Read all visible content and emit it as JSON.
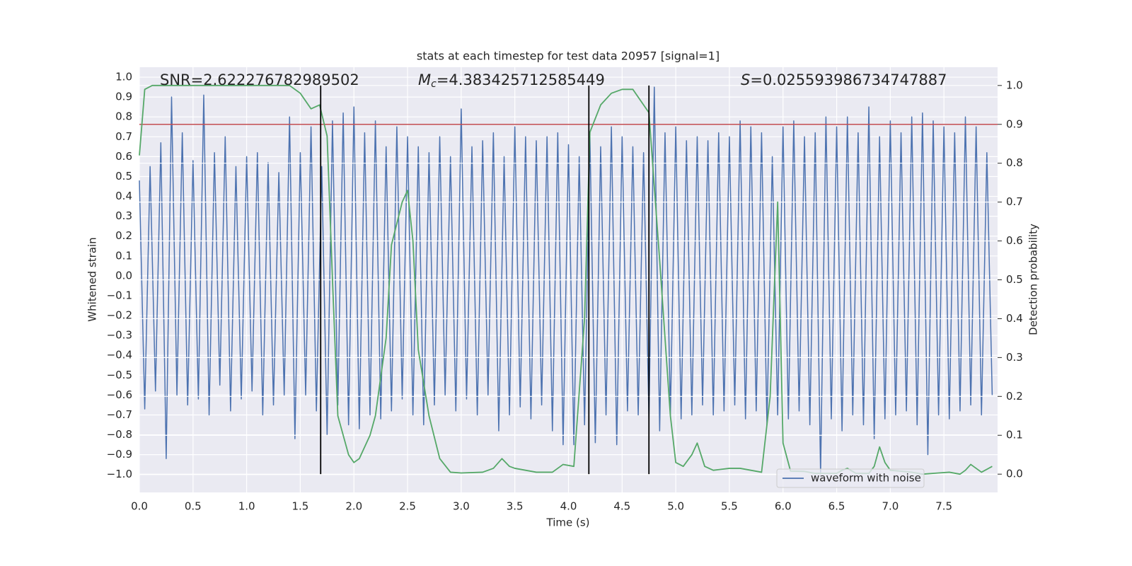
{
  "chart_data": {
    "type": "line",
    "title": "stats at each timestep for test data 20957 [signal=1]",
    "xlabel": "Time (s)",
    "ylabel": "Whitened strain",
    "y2label": "Detection probability",
    "annotations": [
      {
        "text": "SNR=2.622276782989502"
      },
      {
        "symbol": "M",
        "subscript": "c",
        "text": "=4.383425712585449"
      },
      {
        "symbol": "S",
        "text": "=0.025593986734747887"
      }
    ],
    "xlim": [
      0,
      8.0
    ],
    "ylim": [
      -1.09,
      1.05
    ],
    "y2lim": [
      -0.047,
      1.047
    ],
    "xticks": [
      {
        "value": 0,
        "label": "0.0"
      },
      0.5,
      {
        "value": 1,
        "label": "1.0"
      },
      1.5,
      {
        "value": 2,
        "label": "2.0"
      },
      2.5,
      {
        "value": 3,
        "label": "3.0"
      },
      3.5,
      {
        "value": 4,
        "label": "4.0"
      },
      4.5,
      {
        "value": 5,
        "label": "5.0"
      },
      5.5,
      {
        "value": 6,
        "label": "6.0"
      },
      6.5,
      {
        "value": 7,
        "label": "7.0"
      },
      7.5
    ],
    "yticks": [
      {
        "value": -1,
        "label": "−1.0"
      },
      {
        "value": -0.9,
        "label": "−0.9"
      },
      {
        "value": -0.8,
        "label": "−0.8"
      },
      {
        "value": -0.7,
        "label": "−0.7"
      },
      {
        "value": -0.6,
        "label": "−0.6"
      },
      {
        "value": -0.5,
        "label": "−0.5"
      },
      {
        "value": -0.4,
        "label": "−0.4"
      },
      {
        "value": -0.3,
        "label": "−0.3"
      },
      {
        "value": -0.2,
        "label": "−0.2"
      },
      {
        "value": -0.1,
        "label": "−0.1"
      },
      {
        "value": 0,
        "label": "0.0"
      },
      0.1,
      0.2,
      0.3,
      0.4,
      0.5,
      0.6,
      0.7,
      0.8,
      0.9,
      {
        "value": 1,
        "label": "1.0"
      }
    ],
    "y2ticks": [
      {
        "value": 0,
        "label": "0.0"
      },
      0.1,
      0.2,
      0.3,
      0.4,
      0.5,
      0.6,
      0.7,
      0.8,
      0.9,
      {
        "value": 1,
        "label": "1.0"
      }
    ],
    "grid": true,
    "legend": "lower right",
    "series": [
      {
        "name": "waveform with noise",
        "color": "#4c72b0",
        "x": [
          0,
          0.05,
          0.1,
          0.15,
          0.2,
          0.25,
          0.3,
          0.35,
          0.4,
          0.45,
          0.5,
          0.55,
          0.6,
          0.65,
          0.7,
          0.75,
          0.8,
          0.85,
          0.9,
          0.95,
          1,
          1.05,
          1.1,
          1.15,
          1.2,
          1.25,
          1.3,
          1.35,
          1.4,
          1.45,
          1.5,
          1.55,
          1.6,
          1.65,
          1.7,
          1.75,
          1.8,
          1.85,
          1.9,
          1.95,
          2,
          2.05,
          2.1,
          2.15,
          2.2,
          2.25,
          2.3,
          2.35,
          2.4,
          2.45,
          2.5,
          2.55,
          2.6,
          2.65,
          2.7,
          2.75,
          2.8,
          2.85,
          2.9,
          2.95,
          3,
          3.05,
          3.1,
          3.15,
          3.2,
          3.25,
          3.3,
          3.35,
          3.4,
          3.45,
          3.5,
          3.55,
          3.6,
          3.65,
          3.7,
          3.75,
          3.8,
          3.85,
          3.9,
          3.95,
          4,
          4.05,
          4.1,
          4.15,
          4.2,
          4.25,
          4.3,
          4.35,
          4.4,
          4.45,
          4.5,
          4.55,
          4.6,
          4.65,
          4.7,
          4.75,
          4.8,
          4.85,
          4.9,
          4.95,
          5,
          5.05,
          5.1,
          5.15,
          5.2,
          5.25,
          5.3,
          5.35,
          5.4,
          5.45,
          5.5,
          5.55,
          5.6,
          5.65,
          5.7,
          5.75,
          5.8,
          5.85,
          5.9,
          5.95,
          6,
          6.05,
          6.1,
          6.15,
          6.2,
          6.25,
          6.3,
          6.35,
          6.4,
          6.45,
          6.5,
          6.55,
          6.6,
          6.65,
          6.7,
          6.75,
          6.8,
          6.85,
          6.9,
          6.95,
          7,
          7.05,
          7.1,
          7.15,
          7.2,
          7.25,
          7.3,
          7.35,
          7.4,
          7.45,
          7.5,
          7.55,
          7.6,
          7.65,
          7.7,
          7.75,
          7.8,
          7.85,
          7.9,
          7.95
        ],
        "values": [
          0.48,
          -0.67,
          0.55,
          -0.58,
          0.67,
          -0.92,
          0.9,
          -0.6,
          0.72,
          -0.65,
          0.58,
          -0.62,
          0.91,
          -0.7,
          0.62,
          -0.55,
          0.7,
          -0.68,
          0.55,
          -0.62,
          0.6,
          -0.58,
          0.62,
          -0.7,
          0.57,
          -0.65,
          0.52,
          -0.6,
          0.8,
          -0.82,
          0.62,
          -0.6,
          0.75,
          -0.68,
          0.55,
          -0.8,
          0.78,
          -0.65,
          0.82,
          -0.75,
          0.85,
          -0.77,
          0.72,
          -0.7,
          0.78,
          -0.72,
          0.65,
          -0.68,
          0.75,
          -0.62,
          0.7,
          -0.7,
          0.65,
          -0.75,
          0.62,
          -0.65,
          0.7,
          -0.6,
          0.6,
          -0.68,
          0.84,
          -0.62,
          0.65,
          -0.7,
          0.68,
          -0.6,
          0.72,
          -0.78,
          0.6,
          -0.7,
          0.75,
          -0.66,
          0.7,
          -0.72,
          0.68,
          -0.65,
          0.7,
          -0.78,
          0.72,
          -0.85,
          0.66,
          -0.85,
          0.6,
          -0.75,
          0.7,
          -0.84,
          0.65,
          -0.7,
          0.75,
          -0.85,
          0.7,
          -0.68,
          0.65,
          -0.7,
          0.62,
          -0.72,
          0.95,
          -0.78,
          0.72,
          -0.7,
          0.75,
          -0.72,
          0.68,
          -0.7,
          0.7,
          -0.65,
          0.68,
          -0.7,
          0.72,
          -0.68,
          0.7,
          -0.65,
          0.78,
          -0.72,
          0.75,
          -0.68,
          0.72,
          -0.75,
          0.6,
          -0.7,
          0.75,
          -0.72,
          0.78,
          -0.68,
          0.7,
          -0.75,
          0.72,
          -1.0,
          0.8,
          -0.72,
          0.75,
          -0.78,
          0.8,
          -0.7,
          0.72,
          -0.75,
          0.85,
          -0.82,
          0.7,
          -0.72,
          0.78,
          -0.7,
          0.72,
          -0.68,
          0.8,
          -0.75,
          0.82,
          -0.9,
          0.78,
          -0.7,
          0.75,
          -0.72,
          0.72,
          -0.68,
          0.8,
          -0.65,
          0.75,
          -0.7,
          0.62,
          -0.6
        ]
      },
      {
        "color": "#55a868",
        "axis": "y2",
        "x": [
          0,
          0.05,
          0.12,
          1.4,
          1.5,
          1.6,
          1.68,
          1.75,
          1.8,
          1.85,
          1.95,
          2,
          2.05,
          2.15,
          2.2,
          2.3,
          2.35,
          2.45,
          2.5,
          2.55,
          2.6,
          2.7,
          2.8,
          2.9,
          3,
          3.2,
          3.3,
          3.38,
          3.45,
          3.5,
          3.7,
          3.85,
          3.95,
          4.05,
          4.15,
          4.2,
          4.3,
          4.4,
          4.5,
          4.6,
          4.75,
          4.85,
          4.95,
          5,
          5.07,
          5.15,
          5.2,
          5.27,
          5.35,
          5.5,
          5.6,
          5.7,
          5.8,
          5.88,
          5.95,
          6,
          6.07,
          6.2,
          6.3,
          6.5,
          6.55,
          6.6,
          6.68,
          6.8,
          6.85,
          6.9,
          6.95,
          7,
          7.2,
          7.3,
          7.45,
          7.55,
          7.65,
          7.7,
          7.75,
          7.85,
          7.95
        ],
        "values": [
          0.82,
          0.99,
          1.0,
          1.0,
          0.98,
          0.94,
          0.95,
          0.87,
          0.5,
          0.15,
          0.05,
          0.03,
          0.04,
          0.1,
          0.15,
          0.35,
          0.59,
          0.7,
          0.73,
          0.6,
          0.32,
          0.15,
          0.04,
          0.005,
          0.003,
          0.005,
          0.015,
          0.04,
          0.02,
          0.015,
          0.005,
          0.005,
          0.025,
          0.02,
          0.4,
          0.88,
          0.95,
          0.98,
          0.99,
          0.99,
          0.93,
          0.55,
          0.15,
          0.03,
          0.02,
          0.05,
          0.08,
          0.02,
          0.01,
          0.015,
          0.015,
          0.01,
          0.005,
          0.2,
          0.7,
          0.08,
          0.008,
          0.007,
          0.002,
          0.002,
          0.01,
          0.015,
          0.002,
          0.002,
          0.02,
          0.07,
          0.03,
          0.01,
          0.005,
          0.0,
          0.003,
          0.005,
          0.0,
          0.01,
          0.025,
          0.005,
          0.02
        ]
      }
    ],
    "threshold": {
      "y2": 0.9,
      "color": "#c44e52"
    },
    "vlines": {
      "color": "#000000",
      "x": [
        1.69,
        4.19,
        4.75
      ],
      "y2range": [
        0,
        1
      ]
    }
  }
}
